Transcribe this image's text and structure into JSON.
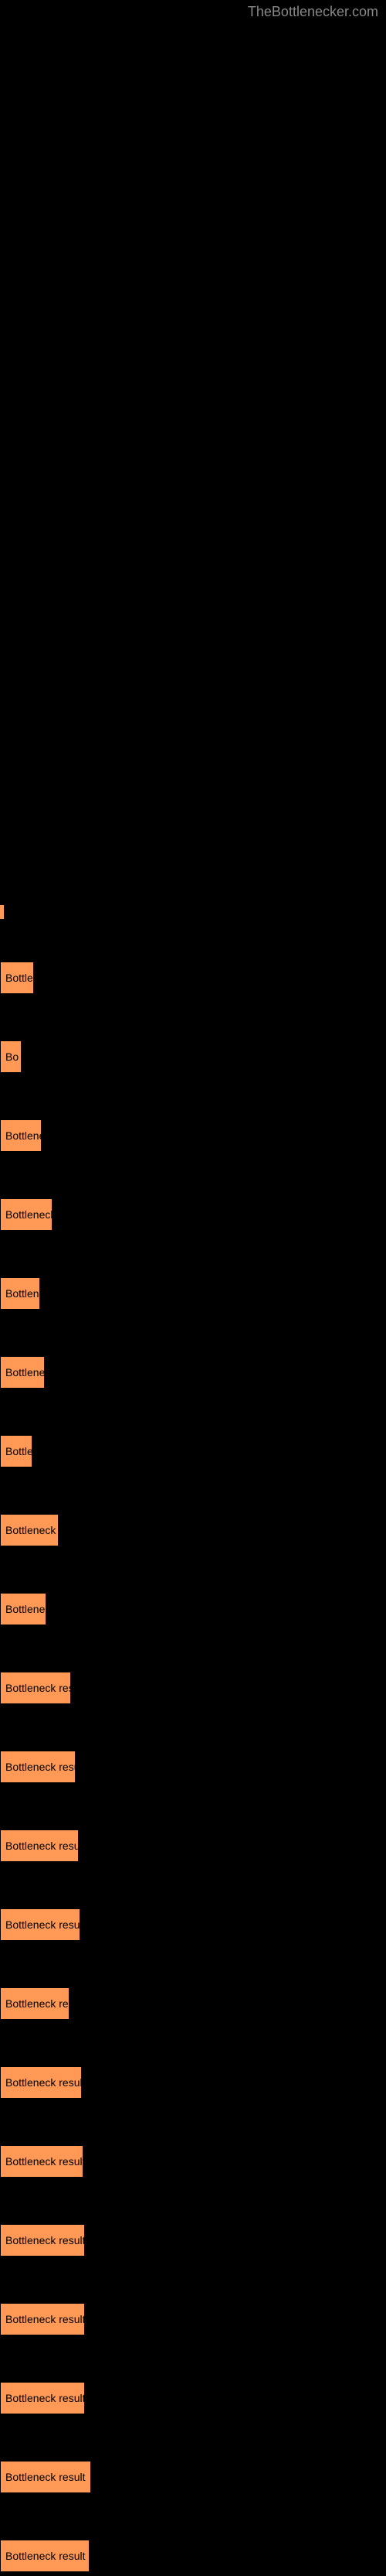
{
  "watermark": "TheBottlenecker.com",
  "items": [
    {
      "label": "Bottle",
      "width": 44
    },
    {
      "label": "Bo",
      "width": 28
    },
    {
      "label": "Bottlene",
      "width": 54
    },
    {
      "label": "Bottleneck",
      "width": 68
    },
    {
      "label": "Bottlen",
      "width": 52
    },
    {
      "label": "Bottlenec",
      "width": 58
    },
    {
      "label": "Bottle",
      "width": 42
    },
    {
      "label": "Bottleneck r",
      "width": 76
    },
    {
      "label": "Bottlene",
      "width": 60
    },
    {
      "label": "Bottleneck resu",
      "width": 92
    },
    {
      "label": "Bottleneck result",
      "width": 98
    },
    {
      "label": "Bottleneck result",
      "width": 102
    },
    {
      "label": "Bottleneck result",
      "width": 104
    },
    {
      "label": "Bottleneck res",
      "width": 90
    },
    {
      "label": "Bottleneck result",
      "width": 106
    },
    {
      "label": "Bottleneck result",
      "width": 108
    },
    {
      "label": "Bottleneck result",
      "width": 110
    },
    {
      "label": "Bottleneck result",
      "width": 110
    },
    {
      "label": "Bottleneck result",
      "width": 110
    },
    {
      "label": "Bottleneck result",
      "width": 118
    },
    {
      "label": "Bottleneck result",
      "width": 116
    }
  ],
  "colors": {
    "background": "#000000",
    "bar_color": "#ff9955",
    "text_color": "#000000",
    "watermark_color": "#888888"
  }
}
